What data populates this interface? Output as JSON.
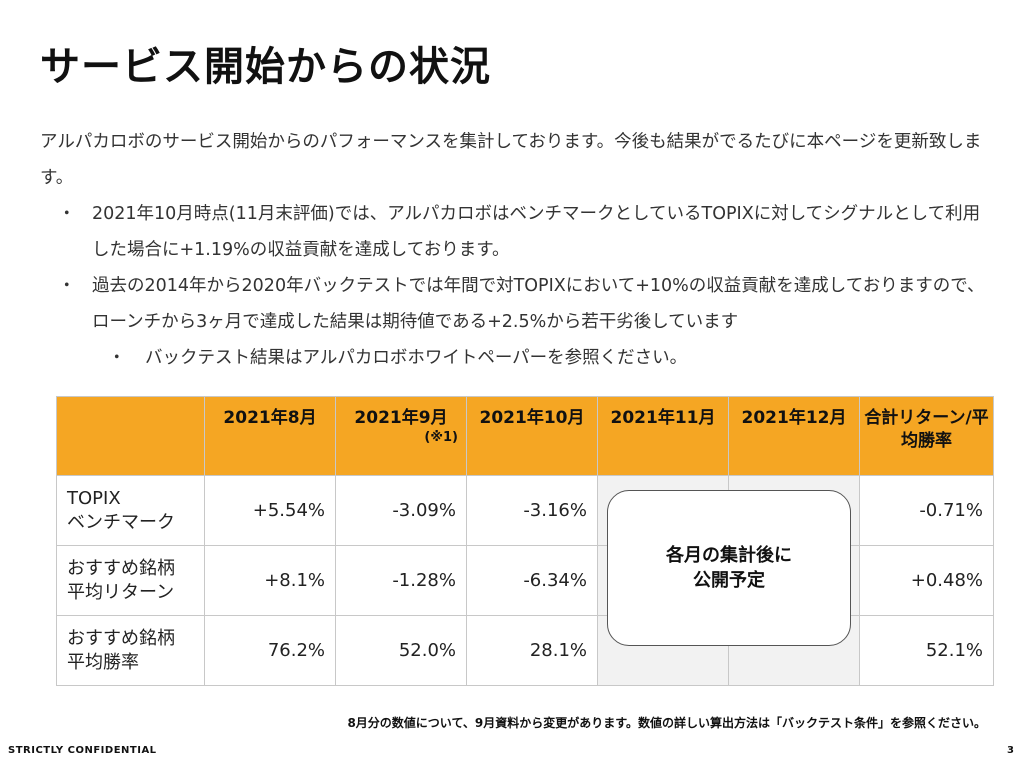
{
  "title": "サービス開始からの状況",
  "intro": "アルパカロボのサービス開始からのパフォーマンスを集計しております。今後も結果がでるたびに本ページを更新致します。",
  "bullet_mark": "・",
  "bullets": [
    {
      "text": "2021年10月時点(11月末評価)では、アルパカロボはベンチマークとしているTOPIXに対してシグナルとして利用した場合に+1.19%の収益貢献を達成しております。"
    },
    {
      "text": "過去の2014年から2020年バックテストでは年間で対TOPIXにおいて+10%の収益貢献を達成しておりますので、ローンチから3ヶ月で達成した結果は期待値である+2.5%から若干劣後しています"
    }
  ],
  "sub_bullet": {
    "text": "バックテスト結果はアルパカロボホワイトペーパーを参照ください。"
  },
  "table": {
    "headers": [
      "",
      "2021年8月",
      "2021年9月",
      "2021年10月",
      "2021年11月",
      "2021年12月",
      "合計リターン/平均勝率"
    ],
    "header_note": "(※1)",
    "rows": [
      {
        "label": "TOPIX\nベンチマーク",
        "aug": "+5.54%",
        "sep": "-3.09%",
        "oct": "-3.16%",
        "total": "-0.71%"
      },
      {
        "label": "おすすめ銘柄\n平均リターン",
        "aug": "+8.1%",
        "sep": "-1.28%",
        "oct": "-6.34%",
        "total": "+0.48%"
      },
      {
        "label": "おすすめ銘柄\n平均勝率",
        "aug": "76.2%",
        "sep": "52.0%",
        "oct": "28.1%",
        "total": "52.1%"
      }
    ],
    "pending_label": "各月の集計後に\n公開予定"
  },
  "footnote": "8月分の数値について、9月資料から変更があります。数値の詳しい算出方法は「バックテスト条件」を参照ください。",
  "footer": {
    "confidential": "STRICTLY CONFIDENTIAL",
    "page_number": "3"
  }
}
